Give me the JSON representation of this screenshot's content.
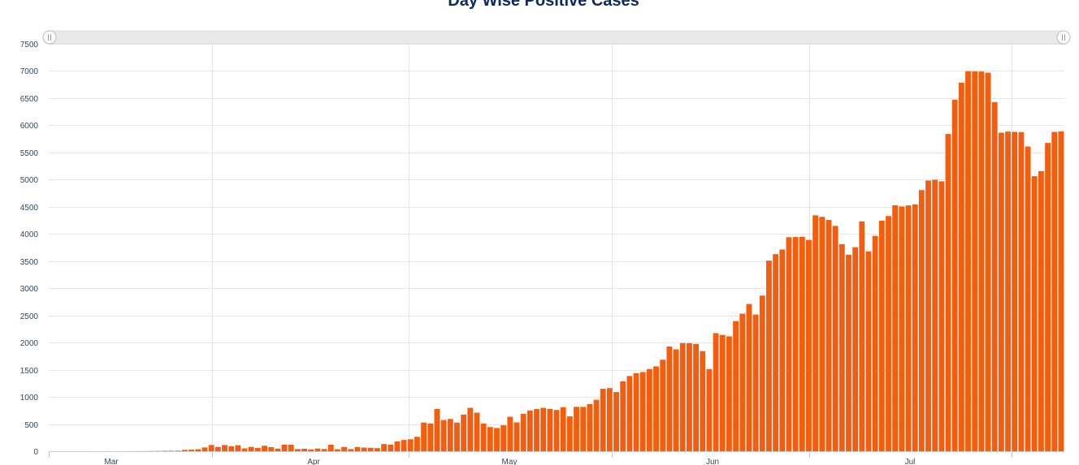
{
  "colors": {
    "bar": "#f55d0e",
    "grid": "#e6e6e6",
    "axis": "#cccccc",
    "title": "#0d2a63",
    "scrollbar": "#e9e9e9",
    "handle": "#ffffff"
  },
  "chart_data": {
    "type": "bar",
    "title": "Day Wise Positive Cases",
    "xlabel": "",
    "ylabel": "",
    "ylim": [
      0,
      7500
    ],
    "y_ticks": [
      "0",
      "500",
      "1000",
      "1500",
      "2000",
      "2500",
      "3000",
      "3500",
      "4000",
      "4500",
      "5000",
      "5500",
      "6000",
      "6500",
      "7000",
      "7500"
    ],
    "x_ticks": [
      "Mar",
      "Apr",
      "May",
      "Jun",
      "Jul"
    ],
    "grid": true,
    "legend": "none",
    "series": [
      {
        "values": [
          0,
          0,
          0,
          0,
          0,
          0,
          0,
          1,
          0,
          0,
          1,
          1,
          1,
          2,
          3,
          4,
          5,
          8,
          9,
          10,
          24,
          28,
          36,
          69,
          115,
          78,
          113,
          89,
          110,
          52,
          80,
          59,
          101,
          75,
          48,
          121,
          119,
          39,
          45,
          33,
          49,
          40,
          121,
          36,
          78,
          39,
          77,
          68,
          64,
          56,
          132,
          121,
          180,
          207,
          220,
          265,
          527,
          510,
          778,
          574,
          594,
          527,
          675,
          798,
          709,
          509,
          445,
          427,
          477,
          634,
          531,
          688,
          750,
          776,
          798,
          779,
          759,
          811,
          641,
          817,
          816,
          866,
          947,
          1149,
          1162,
          1089,
          1286,
          1384,
          1438,
          1458,
          1512,
          1562,
          1684,
          1927,
          1875,
          1990,
          1989,
          1974,
          1843,
          1512,
          2174,
          2141,
          2115,
          2395,
          2532,
          2710,
          2516,
          2865,
          3509,
          3628,
          3713,
          3940,
          3943,
          3947,
          3890,
          4343,
          4314,
          4257,
          4148,
          3812,
          3616,
          3756,
          4230,
          3679,
          3965,
          4244,
          4329,
          4527,
          4506,
          4525,
          4542,
          4807,
          4983,
          4997,
          4969,
          5840,
          6472,
          6785,
          6996,
          6993,
          6990,
          6968,
          6426,
          5864,
          5884,
          5879,
          5875,
          5609,
          5063,
          5156,
          5675,
          5877,
          5886
        ]
      }
    ]
  }
}
